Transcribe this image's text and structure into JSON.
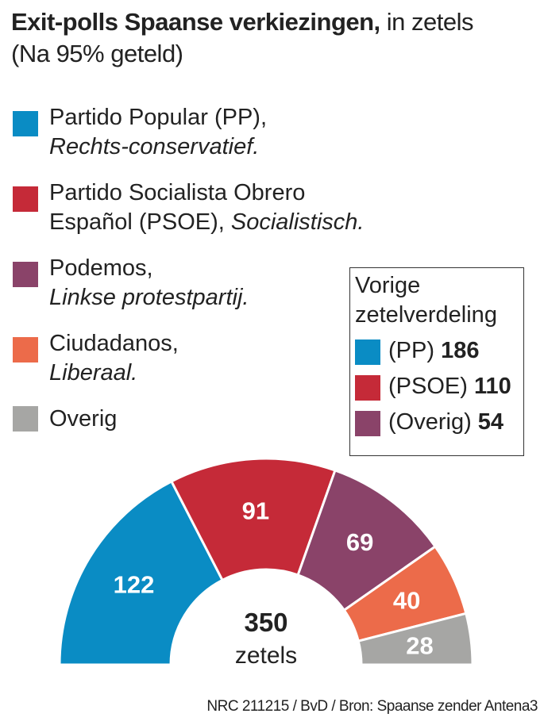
{
  "title": {
    "bold": "Exit-polls Spaanse verkiezingen,",
    "rest": " in zetels",
    "line2": "(Na 95% geteld)"
  },
  "legend": [
    {
      "name": "Partido Popular (PP),",
      "desc": "Rechts-conservatief.",
      "color": "#0a8cc4"
    },
    {
      "name": "Partido Socialista Obrero",
      "name2": "Español (PSOE), ",
      "desc": "Socialistisch.",
      "color": "#c52a38"
    },
    {
      "name": "Podemos,",
      "desc": "Linkse protestpartij.",
      "color": "#8a4369"
    },
    {
      "name": "Ciudadanos,",
      "desc": "Liberaal.",
      "color": "#ec6b4a"
    },
    {
      "name": "Overig",
      "color": "#a6a6a4"
    }
  ],
  "previous": {
    "title1": "Vorige",
    "title2": "zetelverdeling",
    "items": [
      {
        "label": "(PP) ",
        "value": "186",
        "color": "#0a8cc4"
      },
      {
        "label": "(PSOE) ",
        "value": "110",
        "color": "#c52a38"
      },
      {
        "label": "(Overig) ",
        "value": "54",
        "color": "#8a4369"
      }
    ]
  },
  "chart_data": {
    "type": "pie",
    "subtype": "half-donut",
    "categories": [
      "PP",
      "PSOE",
      "Podemos",
      "Ciudadanos",
      "Overig"
    ],
    "values": [
      122,
      91,
      69,
      40,
      28
    ],
    "colors": [
      "#0a8cc4",
      "#c52a38",
      "#8a4369",
      "#ec6b4a",
      "#a6a6a4"
    ],
    "total": "350",
    "total_label": "zetels"
  },
  "source": "NRC 211215 / BvD / Bron: Spaanse zender Antena3"
}
